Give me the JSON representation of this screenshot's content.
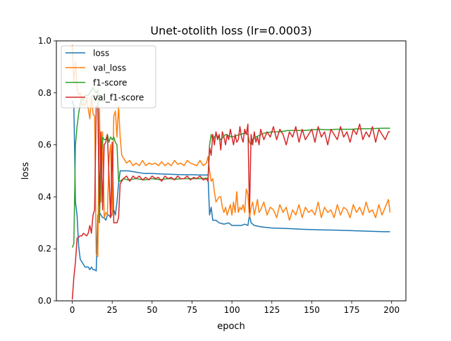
{
  "chart_data": {
    "type": "line",
    "title": "Unet-otolith loss (lr=0.0003)",
    "xlabel": "epoch",
    "ylabel": "loss",
    "xlim": [
      -9.95,
      208.95
    ],
    "ylim": [
      0.0,
      1.0
    ],
    "xticks": [
      0,
      25,
      50,
      75,
      100,
      125,
      150,
      175,
      200
    ],
    "yticks": [
      0.0,
      0.2,
      0.4,
      0.6,
      0.8,
      1.0
    ],
    "xtick_labels": [
      "0",
      "25",
      "50",
      "75",
      "100",
      "125",
      "150",
      "175",
      "200"
    ],
    "ytick_labels": [
      "0.0",
      "0.2",
      "0.4",
      "0.6",
      "0.8",
      "1.0"
    ],
    "grid": false,
    "legend_position": "upper-left",
    "series": [
      {
        "name": "loss",
        "color": "#1f77b4",
        "x": [
          0,
          1,
          2,
          3,
          4,
          5,
          6,
          7,
          8,
          9,
          10,
          11,
          12,
          13,
          14,
          15,
          16,
          17,
          18,
          19,
          20,
          21,
          22,
          23,
          24,
          25,
          26,
          27,
          28,
          29,
          30,
          32,
          35,
          40,
          45,
          50,
          55,
          60,
          65,
          70,
          75,
          80,
          85,
          86,
          87,
          88,
          90,
          92,
          95,
          98,
          100,
          103,
          106,
          108,
          110,
          111,
          112,
          114,
          118,
          125,
          135,
          145,
          155,
          165,
          175,
          185,
          195,
          199
        ],
        "y": [
          0.77,
          0.75,
          0.38,
          0.33,
          0.21,
          0.16,
          0.15,
          0.14,
          0.13,
          0.13,
          0.13,
          0.12,
          0.13,
          0.12,
          0.12,
          0.115,
          0.33,
          0.34,
          0.33,
          0.32,
          0.32,
          0.31,
          0.33,
          0.33,
          0.32,
          0.34,
          0.35,
          0.33,
          0.38,
          0.45,
          0.5,
          0.5,
          0.5,
          0.495,
          0.49,
          0.49,
          0.488,
          0.487,
          0.486,
          0.485,
          0.485,
          0.484,
          0.484,
          0.33,
          0.36,
          0.31,
          0.31,
          0.3,
          0.295,
          0.3,
          0.29,
          0.29,
          0.29,
          0.295,
          0.29,
          0.33,
          0.3,
          0.29,
          0.285,
          0.28,
          0.278,
          0.275,
          0.273,
          0.272,
          0.27,
          0.268,
          0.266,
          0.266
        ]
      },
      {
        "name": "val_loss",
        "color": "#ff7f0e",
        "x": [
          0,
          1,
          2,
          3,
          4,
          5,
          6,
          7,
          8,
          9,
          10,
          11,
          12,
          13,
          14,
          15,
          16,
          17,
          18,
          19,
          20,
          21,
          22,
          23,
          24,
          25,
          26,
          27,
          28,
          29,
          30,
          31,
          32,
          34,
          36,
          38,
          40,
          42,
          44,
          46,
          48,
          50,
          52,
          54,
          56,
          58,
          60,
          62,
          64,
          66,
          68,
          70,
          72,
          74,
          76,
          78,
          80,
          82,
          84,
          85,
          86,
          87,
          88,
          89,
          90,
          91,
          92,
          93,
          94,
          95,
          96,
          97,
          98,
          99,
          100,
          101,
          102,
          103,
          104,
          105,
          106,
          107,
          108,
          109,
          110,
          111,
          112,
          113,
          114,
          115,
          116,
          117,
          118,
          120,
          122,
          124,
          126,
          128,
          130,
          132,
          134,
          136,
          138,
          140,
          142,
          144,
          146,
          148,
          150,
          152,
          154,
          156,
          158,
          160,
          162,
          164,
          166,
          168,
          170,
          172,
          174,
          176,
          178,
          180,
          182,
          184,
          186,
          188,
          190,
          192,
          194,
          196,
          198,
          199
        ],
        "y": [
          0.985,
          0.84,
          0.92,
          0.82,
          0.79,
          0.8,
          0.75,
          0.76,
          0.75,
          0.78,
          0.74,
          0.7,
          0.79,
          0.72,
          0.71,
          0.18,
          0.17,
          0.74,
          0.38,
          0.65,
          0.32,
          0.34,
          0.33,
          0.55,
          0.6,
          0.33,
          0.71,
          0.73,
          0.63,
          0.75,
          0.63,
          0.56,
          0.55,
          0.53,
          0.54,
          0.52,
          0.53,
          0.52,
          0.54,
          0.52,
          0.53,
          0.525,
          0.53,
          0.52,
          0.535,
          0.52,
          0.53,
          0.52,
          0.54,
          0.525,
          0.53,
          0.52,
          0.54,
          0.53,
          0.525,
          0.52,
          0.54,
          0.52,
          0.53,
          0.555,
          0.5,
          0.46,
          0.47,
          0.42,
          0.38,
          0.39,
          0.4,
          0.4,
          0.36,
          0.34,
          0.36,
          0.33,
          0.35,
          0.37,
          0.33,
          0.38,
          0.34,
          0.42,
          0.34,
          0.36,
          0.35,
          0.37,
          0.34,
          0.43,
          0.41,
          0.32,
          0.36,
          0.38,
          0.33,
          0.36,
          0.39,
          0.34,
          0.35,
          0.38,
          0.33,
          0.36,
          0.35,
          0.32,
          0.37,
          0.34,
          0.36,
          0.31,
          0.35,
          0.33,
          0.37,
          0.32,
          0.36,
          0.34,
          0.35,
          0.33,
          0.38,
          0.32,
          0.36,
          0.34,
          0.35,
          0.32,
          0.37,
          0.33,
          0.36,
          0.35,
          0.32,
          0.37,
          0.34,
          0.36,
          0.33,
          0.38,
          0.34,
          0.35,
          0.32,
          0.37,
          0.33,
          0.36,
          0.39,
          0.34
        ]
      },
      {
        "name": "f1-score",
        "color": "#2ca02c",
        "x": [
          0,
          1,
          2,
          3,
          4,
          5,
          6,
          7,
          8,
          9,
          10,
          11,
          12,
          13,
          14,
          15,
          16,
          17,
          18,
          19,
          20,
          21,
          22,
          23,
          24,
          25,
          26,
          27,
          28,
          29,
          30,
          32,
          35,
          40,
          45,
          50,
          55,
          60,
          65,
          70,
          75,
          80,
          84,
          85,
          86,
          87,
          88,
          90,
          93,
          96,
          100,
          105,
          108,
          110,
          111,
          112,
          113,
          115,
          120,
          125,
          130,
          135,
          140,
          145,
          150,
          155,
          160,
          165,
          170,
          175,
          180,
          185,
          190,
          195,
          199
        ],
        "y": [
          0.205,
          0.22,
          0.6,
          0.67,
          0.72,
          0.76,
          0.78,
          0.77,
          0.79,
          0.79,
          0.79,
          0.8,
          0.81,
          0.82,
          0.81,
          0.8,
          0.81,
          0.3,
          0.54,
          0.63,
          0.62,
          0.62,
          0.64,
          0.61,
          0.63,
          0.62,
          0.63,
          0.61,
          0.6,
          0.46,
          0.46,
          0.47,
          0.465,
          0.47,
          0.465,
          0.47,
          0.466,
          0.47,
          0.468,
          0.47,
          0.47,
          0.47,
          0.472,
          0.47,
          0.6,
          0.64,
          0.62,
          0.64,
          0.62,
          0.64,
          0.63,
          0.64,
          0.645,
          0.64,
          0.61,
          0.6,
          0.62,
          0.63,
          0.645,
          0.65,
          0.65,
          0.655,
          0.655,
          0.655,
          0.658,
          0.66,
          0.658,
          0.66,
          0.66,
          0.66,
          0.662,
          0.662,
          0.663,
          0.664,
          0.664
        ]
      },
      {
        "name": "val_f1-score",
        "color": "#d62728",
        "x": [
          0,
          1,
          2,
          3,
          4,
          5,
          6,
          7,
          8,
          9,
          10,
          11,
          12,
          13,
          14,
          15,
          16,
          17,
          18,
          19,
          20,
          21,
          22,
          23,
          24,
          25,
          26,
          27,
          28,
          29,
          30,
          31,
          32,
          34,
          36,
          38,
          40,
          42,
          44,
          46,
          48,
          50,
          52,
          54,
          56,
          58,
          60,
          62,
          64,
          66,
          68,
          70,
          72,
          74,
          76,
          78,
          80,
          82,
          84,
          85,
          86,
          87,
          88,
          89,
          90,
          91,
          92,
          93,
          94,
          95,
          96,
          97,
          98,
          99,
          100,
          101,
          102,
          103,
          104,
          105,
          106,
          107,
          108,
          109,
          110,
          111,
          112,
          113,
          114,
          115,
          116,
          117,
          118,
          120,
          122,
          124,
          126,
          128,
          130,
          132,
          134,
          136,
          138,
          140,
          142,
          144,
          146,
          148,
          150,
          152,
          154,
          156,
          158,
          160,
          162,
          164,
          166,
          168,
          170,
          172,
          174,
          176,
          178,
          180,
          182,
          184,
          186,
          188,
          190,
          192,
          194,
          196,
          198,
          199
        ],
        "y": [
          0.005,
          0.09,
          0.15,
          0.24,
          0.245,
          0.25,
          0.25,
          0.26,
          0.255,
          0.25,
          0.26,
          0.29,
          0.26,
          0.33,
          0.35,
          0.75,
          0.74,
          0.37,
          0.65,
          0.35,
          0.6,
          0.61,
          0.64,
          0.48,
          0.32,
          0.61,
          0.3,
          0.3,
          0.3,
          0.32,
          0.45,
          0.46,
          0.47,
          0.48,
          0.46,
          0.48,
          0.47,
          0.48,
          0.465,
          0.475,
          0.465,
          0.48,
          0.47,
          0.475,
          0.46,
          0.48,
          0.47,
          0.475,
          0.465,
          0.48,
          0.47,
          0.47,
          0.48,
          0.465,
          0.475,
          0.47,
          0.48,
          0.465,
          0.47,
          0.46,
          0.59,
          0.56,
          0.64,
          0.6,
          0.65,
          0.62,
          0.64,
          0.58,
          0.65,
          0.63,
          0.6,
          0.64,
          0.62,
          0.66,
          0.63,
          0.6,
          0.64,
          0.61,
          0.62,
          0.67,
          0.63,
          0.61,
          0.66,
          0.64,
          0.68,
          0.34,
          0.64,
          0.6,
          0.65,
          0.61,
          0.63,
          0.6,
          0.66,
          0.62,
          0.65,
          0.63,
          0.67,
          0.62,
          0.66,
          0.64,
          0.6,
          0.65,
          0.63,
          0.67,
          0.61,
          0.66,
          0.62,
          0.64,
          0.66,
          0.61,
          0.67,
          0.63,
          0.65,
          0.6,
          0.66,
          0.64,
          0.62,
          0.67,
          0.63,
          0.65,
          0.61,
          0.66,
          0.64,
          0.68,
          0.62,
          0.65,
          0.63,
          0.67,
          0.61,
          0.66,
          0.64,
          0.62,
          0.65,
          0.65
        ]
      }
    ]
  }
}
